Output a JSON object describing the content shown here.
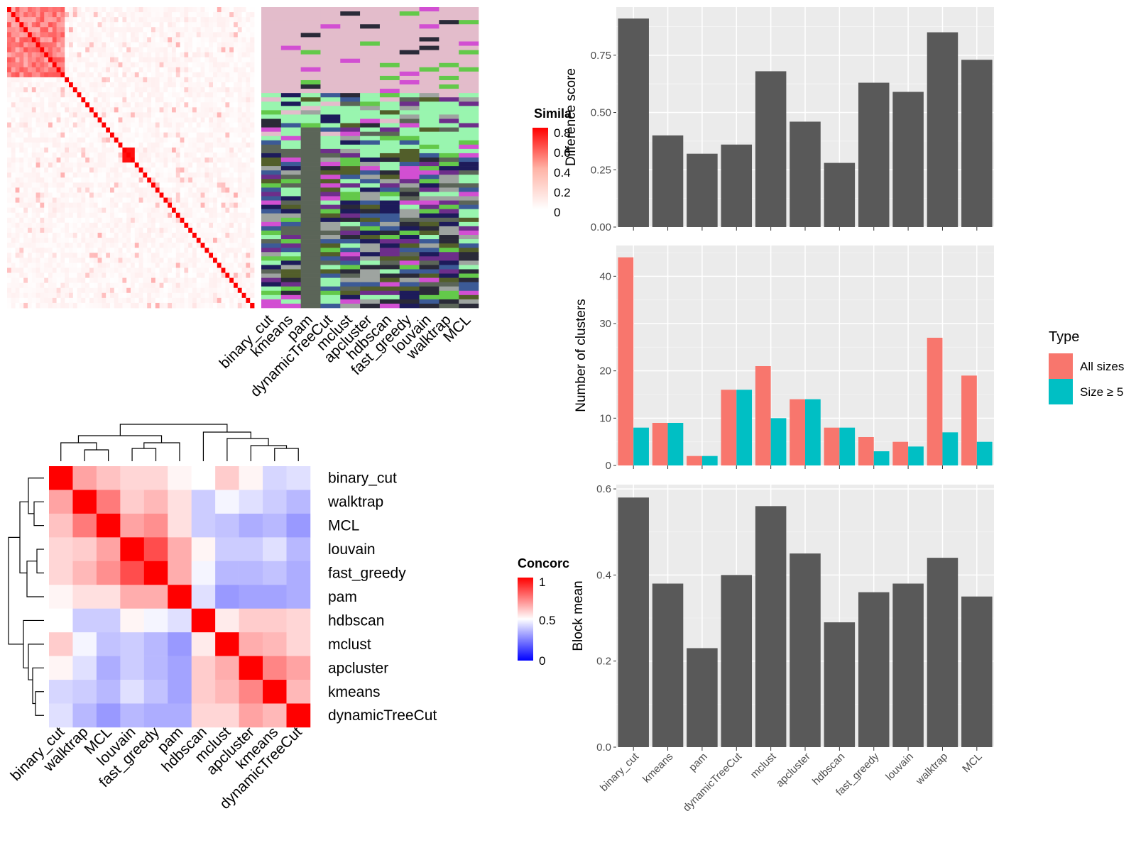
{
  "similarity_legend": {
    "title": "Simila",
    "ticks": [
      "0.8",
      "0.6",
      "0.4",
      "0.2",
      "0"
    ]
  },
  "concordance_legend": {
    "title": "Concorc",
    "ticks": [
      "1",
      "0.5",
      "0"
    ]
  },
  "type_legend": {
    "title": "Type",
    "items": [
      {
        "label": "All sizes",
        "color": "#F8766D"
      },
      {
        "label": "Size ≥ 5",
        "color": "#00BFC4"
      }
    ]
  },
  "colors": {
    "panel_bg": "#EBEBEB",
    "bar_dark": "#595959",
    "heat_red": "#FF0000",
    "heat_blue": "#0000FF"
  },
  "chart_data": [
    {
      "type": "heatmap",
      "name": "consensus-similarity-heatmap",
      "color_scale": {
        "min": 0,
        "max": 0.8,
        "low": "#FFFFFF",
        "high": "#FF0000"
      },
      "columns": [
        "binary_cut",
        "kmeans",
        "pam",
        "dynamicTreeCut",
        "mclust",
        "apcluster",
        "hdbscan",
        "fast_greedy",
        "louvain",
        "walktrap",
        "MCL"
      ]
    },
    {
      "type": "heatmap",
      "name": "method-concordance-heatmap",
      "labels": [
        "binary_cut",
        "walktrap",
        "MCL",
        "louvain",
        "fast_greedy",
        "pam",
        "hdbscan",
        "mclust",
        "apcluster",
        "kmeans",
        "dynamicTreeCut"
      ],
      "color_scale": {
        "min": 0,
        "mid": 0.5,
        "max": 1,
        "low": "#0000FF",
        "midcolor": "#FFFFFF",
        "high": "#FF0000"
      },
      "matrix": [
        [
          1.0,
          0.68,
          0.62,
          0.58,
          0.58,
          0.52,
          0.5,
          0.6,
          0.52,
          0.42,
          0.44
        ],
        [
          0.68,
          1.0,
          0.76,
          0.6,
          0.64,
          0.56,
          0.4,
          0.48,
          0.44,
          0.4,
          0.36
        ],
        [
          0.62,
          0.76,
          1.0,
          0.68,
          0.72,
          0.56,
          0.4,
          0.38,
          0.34,
          0.36,
          0.3
        ],
        [
          0.58,
          0.6,
          0.68,
          1.0,
          0.85,
          0.66,
          0.52,
          0.4,
          0.4,
          0.44,
          0.36
        ],
        [
          0.58,
          0.64,
          0.72,
          0.85,
          1.0,
          0.66,
          0.48,
          0.36,
          0.36,
          0.38,
          0.34
        ],
        [
          0.52,
          0.56,
          0.56,
          0.66,
          0.66,
          1.0,
          0.44,
          0.3,
          0.32,
          0.32,
          0.34
        ],
        [
          0.5,
          0.4,
          0.4,
          0.52,
          0.48,
          0.44,
          1.0,
          0.54,
          0.6,
          0.6,
          0.58
        ],
        [
          0.6,
          0.48,
          0.38,
          0.4,
          0.36,
          0.3,
          0.54,
          1.0,
          0.66,
          0.64,
          0.58
        ],
        [
          0.52,
          0.44,
          0.34,
          0.4,
          0.36,
          0.32,
          0.6,
          0.66,
          1.0,
          0.74,
          0.68
        ],
        [
          0.42,
          0.4,
          0.36,
          0.44,
          0.38,
          0.32,
          0.6,
          0.64,
          0.74,
          1.0,
          0.64
        ],
        [
          0.44,
          0.36,
          0.3,
          0.36,
          0.34,
          0.34,
          0.58,
          0.58,
          0.68,
          0.64,
          1.0
        ]
      ]
    },
    {
      "type": "bar",
      "name": "difference-score",
      "categories": [
        "binary_cut",
        "kmeans",
        "pam",
        "dynamicTreeCut",
        "mclust",
        "apcluster",
        "hdbscan",
        "fast_greedy",
        "louvain",
        "walktrap",
        "MCL"
      ],
      "values": [
        0.91,
        0.4,
        0.32,
        0.36,
        0.68,
        0.46,
        0.28,
        0.63,
        0.59,
        0.85,
        0.73
      ],
      "ylabel": "Difference score",
      "ylim": [
        0,
        0.96
      ],
      "yticks": [
        "0.00",
        "0.25",
        "0.50",
        "0.75"
      ],
      "ytick_values": [
        0,
        0.25,
        0.5,
        0.75
      ],
      "grid": true
    },
    {
      "type": "bar",
      "name": "number-of-clusters",
      "categories": [
        "binary_cut",
        "kmeans",
        "pam",
        "dynamicTreeCut",
        "mclust",
        "apcluster",
        "hdbscan",
        "fast_greedy",
        "louvain",
        "walktrap",
        "MCL"
      ],
      "series": [
        {
          "name": "All sizes",
          "values": [
            44,
            9,
            2,
            16,
            21,
            14,
            8,
            6,
            5,
            27,
            19
          ]
        },
        {
          "name": "Size ≥ 5",
          "values": [
            8,
            9,
            2,
            16,
            10,
            14,
            8,
            3,
            4,
            7,
            5
          ]
        }
      ],
      "ylabel": "Number of clusters",
      "ylim": [
        0,
        46.5
      ],
      "yticks": [
        "0",
        "10",
        "20",
        "30",
        "40"
      ],
      "ytick_values": [
        0,
        10,
        20,
        30,
        40
      ],
      "grid": true,
      "legend": "right"
    },
    {
      "type": "bar",
      "name": "block-mean",
      "categories": [
        "binary_cut",
        "kmeans",
        "pam",
        "dynamicTreeCut",
        "mclust",
        "apcluster",
        "hdbscan",
        "fast_greedy",
        "louvain",
        "walktrap",
        "MCL"
      ],
      "values": [
        0.58,
        0.38,
        0.23,
        0.4,
        0.56,
        0.45,
        0.29,
        0.36,
        0.38,
        0.44,
        0.35
      ],
      "ylabel": "Block mean",
      "ylim": [
        0,
        0.61
      ],
      "yticks": [
        "0.0",
        "0.2",
        "0.4",
        "0.6"
      ],
      "ytick_values": [
        0,
        0.2,
        0.4,
        0.6
      ],
      "grid": true
    }
  ]
}
